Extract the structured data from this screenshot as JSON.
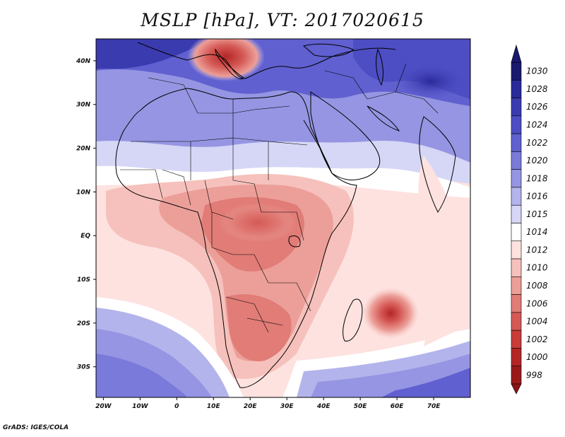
{
  "title": "MSLP [hPa], VT: 2017020615",
  "map": {
    "region": "Africa and Middle East",
    "lat_labels": [
      "40N",
      "30N",
      "20N",
      "10N",
      "EQ",
      "10S",
      "20S",
      "30S"
    ],
    "lat_values": [
      40,
      30,
      20,
      10,
      0,
      -10,
      -20,
      -30
    ],
    "lon_labels": [
      "20W",
      "10W",
      "0",
      "10E",
      "20E",
      "30E",
      "40E",
      "50E",
      "60E",
      "70E"
    ],
    "lon_values": [
      -20,
      -10,
      0,
      10,
      20,
      30,
      40,
      50,
      60,
      70
    ],
    "lon_range": [
      -22,
      80
    ],
    "lat_range": [
      -37,
      45
    ]
  },
  "colorbar": {
    "levels": [
      1030,
      1028,
      1026,
      1024,
      1022,
      1020,
      1018,
      1016,
      1015,
      1014,
      1012,
      1010,
      1008,
      1006,
      1004,
      1002,
      1000,
      998
    ],
    "colors": [
      "#191970",
      "#2a2a9a",
      "#3b3bb0",
      "#4d4dc4",
      "#6060d0",
      "#7a7adb",
      "#9595e3",
      "#b4b4ec",
      "#d6d6f6",
      "#ffffff",
      "#fde2e0",
      "#f6c1bc",
      "#ec9f99",
      "#e17c77",
      "#d55a56",
      "#c83c3a",
      "#b32626",
      "#9a1a1a"
    ],
    "top_color": "#191970",
    "bottom_color": "#8b1414"
  },
  "footer": "GrADS: IGES/COLA"
}
